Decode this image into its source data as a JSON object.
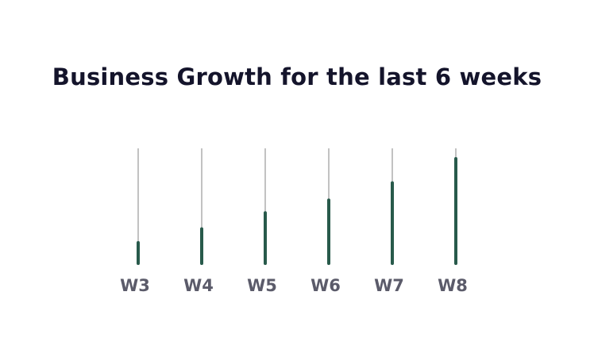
{
  "chart_data": {
    "type": "bar",
    "title": "Business Growth for the last 6 weeks",
    "categories": [
      "W3",
      "W4",
      "W5",
      "W6",
      "W7",
      "W8"
    ],
    "values": [
      18,
      30,
      44,
      55,
      70,
      91
    ],
    "ylim": [
      0,
      100
    ],
    "xlabel": "",
    "ylabel": "",
    "grid": false,
    "legend": "none"
  },
  "colors": {
    "bar": "#285a4b",
    "track": "#9a9a9a",
    "title": "#14142b",
    "label": "#5b5b6a"
  }
}
